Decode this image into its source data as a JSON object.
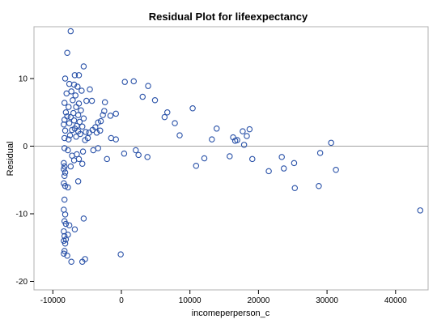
{
  "chart_data": {
    "type": "scatter",
    "title": "Residual Plot for lifeexpectancy",
    "xlabel": "incomeperperson_c",
    "ylabel": "Residual",
    "xlim": [
      -10000,
      45000
    ],
    "ylim": [
      -20.5,
      18.5
    ],
    "x_ticks": [
      -10000,
      0,
      10000,
      20000,
      30000,
      40000
    ],
    "x_tick_labels": [
      "-10000",
      "0",
      "10000",
      "20000",
      "30000",
      "40000"
    ],
    "y_ticks": [
      -20,
      -10,
      0,
      10
    ],
    "y_tick_labels": [
      "-20",
      "-10",
      "0",
      "10"
    ],
    "reference_line_y": 0,
    "grid": false,
    "legend": "none",
    "marker": "open-circle",
    "colors": {
      "marker": "#2a52a8",
      "reference_line": "#a0a0a0",
      "frame": "#b0b0b0"
    },
    "points": [
      [
        -7400,
        17.0
      ],
      [
        -7900,
        13.8
      ],
      [
        -5500,
        11.8
      ],
      [
        -6200,
        10.5
      ],
      [
        -6800,
        10.5
      ],
      [
        -8200,
        10.0
      ],
      [
        -7600,
        9.2
      ],
      [
        -6900,
        9.1
      ],
      [
        -6400,
        8.8
      ],
      [
        -5800,
        8.2
      ],
      [
        -7300,
        8.1
      ],
      [
        -8000,
        7.8
      ],
      [
        -6700,
        7.5
      ],
      [
        -4600,
        8.4
      ],
      [
        -7100,
        6.8
      ],
      [
        -8300,
        6.4
      ],
      [
        -6200,
        6.3
      ],
      [
        -5100,
        6.7
      ],
      [
        -4300,
        6.7
      ],
      [
        -7700,
        5.8
      ],
      [
        -6600,
        5.8
      ],
      [
        -5900,
        5.3
      ],
      [
        -8100,
        5.0
      ],
      [
        -7000,
        4.9
      ],
      [
        -6300,
        4.6
      ],
      [
        -7900,
        4.4
      ],
      [
        -7400,
        4.3
      ],
      [
        -5500,
        4.1
      ],
      [
        -8300,
        3.9
      ],
      [
        -6900,
        3.8
      ],
      [
        -6100,
        3.6
      ],
      [
        -7600,
        3.4
      ],
      [
        -8400,
        3.2
      ],
      [
        -6500,
        3.0
      ],
      [
        -5700,
        2.9
      ],
      [
        -6800,
        2.6
      ],
      [
        -7200,
        2.4
      ],
      [
        -8200,
        2.3
      ],
      [
        -6300,
        2.2
      ],
      [
        -5200,
        2.1
      ],
      [
        -4700,
        2.0
      ],
      [
        -6000,
        1.8
      ],
      [
        -7500,
        1.6
      ],
      [
        -6600,
        1.4
      ],
      [
        -8300,
        1.2
      ],
      [
        -7700,
        1.0
      ],
      [
        -5300,
        0.9
      ],
      [
        -4200,
        2.4
      ],
      [
        -3800,
        2.8
      ],
      [
        -3400,
        3.5
      ],
      [
        -3000,
        3.7
      ],
      [
        -2700,
        4.6
      ],
      [
        -2500,
        5.2
      ],
      [
        -2400,
        6.5
      ],
      [
        -1600,
        4.5
      ],
      [
        -800,
        4.8
      ],
      [
        -1500,
        1.2
      ],
      [
        -800,
        1.0
      ],
      [
        -3100,
        2.3
      ],
      [
        -3600,
        2.0
      ],
      [
        500,
        9.5
      ],
      [
        1800,
        9.6
      ],
      [
        3100,
        7.3
      ],
      [
        3900,
        8.9
      ],
      [
        4900,
        6.8
      ],
      [
        6300,
        4.3
      ],
      [
        6700,
        5.0
      ],
      [
        7800,
        3.4
      ],
      [
        8500,
        1.6
      ],
      [
        10400,
        5.6
      ],
      [
        10900,
        -2.9
      ],
      [
        12100,
        -1.8
      ],
      [
        13200,
        1.0
      ],
      [
        13900,
        2.6
      ],
      [
        15800,
        -1.5
      ],
      [
        16300,
        1.3
      ],
      [
        16600,
        0.8
      ],
      [
        16900,
        0.9
      ],
      [
        17700,
        2.2
      ],
      [
        17900,
        0.2
      ],
      [
        18300,
        1.5
      ],
      [
        18700,
        2.5
      ],
      [
        19100,
        -1.9
      ],
      [
        21500,
        -3.7
      ],
      [
        23400,
        -1.6
      ],
      [
        23700,
        -3.3
      ],
      [
        25200,
        -2.5
      ],
      [
        25300,
        -6.2
      ],
      [
        28800,
        -5.9
      ],
      [
        29000,
        -1.0
      ],
      [
        30600,
        0.5
      ],
      [
        31300,
        -3.5
      ],
      [
        43600,
        -9.5
      ],
      [
        400,
        -1.1
      ],
      [
        2100,
        -0.6
      ],
      [
        2500,
        -1.3
      ],
      [
        3800,
        -1.6
      ],
      [
        -2100,
        -1.9
      ],
      [
        -3400,
        -0.3
      ],
      [
        -4100,
        -0.6
      ],
      [
        -5600,
        -0.8
      ],
      [
        -6500,
        -1.2
      ],
      [
        -7200,
        -1.4
      ],
      [
        -7800,
        -0.6
      ],
      [
        -8300,
        -0.3
      ],
      [
        -6200,
        -1.9
      ],
      [
        -5700,
        -2.6
      ],
      [
        -6900,
        -2.1
      ],
      [
        -8400,
        -2.5
      ],
      [
        -8300,
        -3.0
      ],
      [
        -8400,
        -3.4
      ],
      [
        -8200,
        -3.9
      ],
      [
        -8300,
        -4.4
      ],
      [
        -7400,
        -3.0
      ],
      [
        -8400,
        -5.5
      ],
      [
        -8200,
        -5.9
      ],
      [
        -7800,
        -6.1
      ],
      [
        -8300,
        -7.9
      ],
      [
        -8400,
        -9.4
      ],
      [
        -8200,
        -10.1
      ],
      [
        -5500,
        -10.7
      ],
      [
        -8300,
        -11.1
      ],
      [
        -8100,
        -11.5
      ],
      [
        -7600,
        -11.7
      ],
      [
        -6800,
        -12.3
      ],
      [
        -8400,
        -12.6
      ],
      [
        -8300,
        -13.3
      ],
      [
        -8400,
        -14.0
      ],
      [
        -8200,
        -14.4
      ],
      [
        -8300,
        -15.5
      ],
      [
        -8400,
        -15.9
      ],
      [
        -7900,
        -16.2
      ],
      [
        -5300,
        -16.7
      ],
      [
        -5700,
        -17.1
      ],
      [
        -7300,
        -17.1
      ],
      [
        -100,
        -16.0
      ],
      [
        -8100,
        -13.8
      ],
      [
        -7800,
        -13.1
      ],
      [
        -6300,
        -5.2
      ],
      [
        -4900,
        1.2
      ]
    ]
  }
}
